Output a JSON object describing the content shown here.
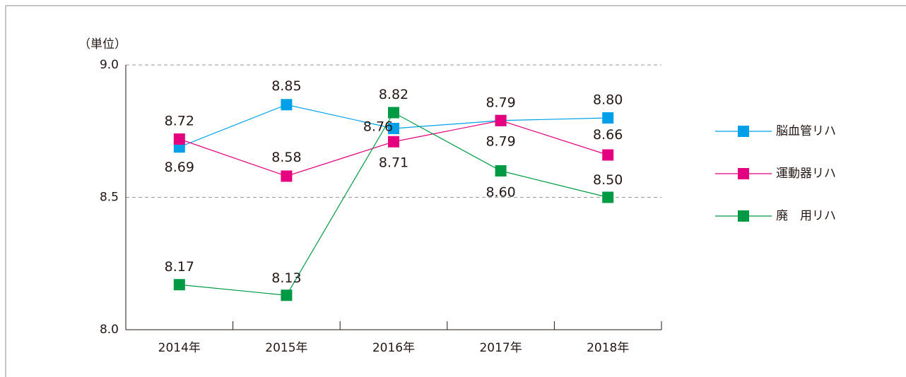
{
  "chart_data": {
    "type": "line",
    "y_axis_label": "（単位）",
    "categories": [
      "2014年",
      "2015年",
      "2016年",
      "2017年",
      "2018年"
    ],
    "ylim": [
      8.0,
      9.0
    ],
    "yticks": [
      {
        "value": 8.0,
        "label": "8.0"
      },
      8.5,
      {
        "value": 9.0,
        "label": "9.0"
      }
    ],
    "grid": true,
    "legend": "right",
    "series": [
      {
        "name": "脳血管リハ",
        "color": "#00a0e9",
        "values": [
          8.69,
          8.85,
          8.76,
          8.79,
          8.8
        ],
        "value_labels": [
          "8.69",
          "8.85",
          "8.76",
          "8.79",
          "8.80"
        ]
      },
      {
        "name": "運動器リハ",
        "color": "#e4007f",
        "values": [
          8.72,
          8.58,
          8.71,
          8.79,
          8.66
        ],
        "value_labels": [
          "8.72",
          "8.58",
          "8.71",
          "8.79",
          "8.66"
        ]
      },
      {
        "name": "廃　用リハ",
        "color": "#009944",
        "values": [
          8.17,
          8.13,
          8.82,
          8.6,
          8.5
        ],
        "value_labels": [
          "8.17",
          "8.13",
          "8.82",
          "8.60",
          "8.50"
        ]
      }
    ]
  }
}
